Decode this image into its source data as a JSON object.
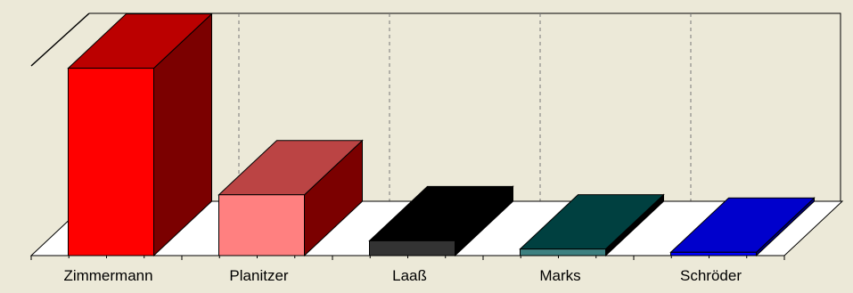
{
  "chart_data": {
    "type": "bar",
    "three_d": true,
    "categories": [
      "Zimmermann",
      "Planitzer",
      "Laaß",
      "Marks",
      "Schröder"
    ],
    "values": [
      57.0,
      18.5,
      4.5,
      2.0,
      1.0
    ],
    "ylim": [
      0,
      68
    ],
    "title": "",
    "xlabel": "",
    "ylabel": "",
    "grid": "vertical-dashed",
    "legend": "none",
    "colors": [
      {
        "front": "#ff0000",
        "top": "#bb0000",
        "side": "#7b0000"
      },
      {
        "front": "#ff8080",
        "top": "#bb4444",
        "side": "#7b0000"
      },
      {
        "front": "#333333",
        "top": "#000000",
        "side": "#000000"
      },
      {
        "front": "#3d8080",
        "top": "#004040",
        "side": "#000000"
      },
      {
        "front": "#0000ff",
        "top": "#0000cc",
        "side": "#00007b"
      }
    ],
    "background": "#ece9d8",
    "floor_color": "#ffffff"
  }
}
